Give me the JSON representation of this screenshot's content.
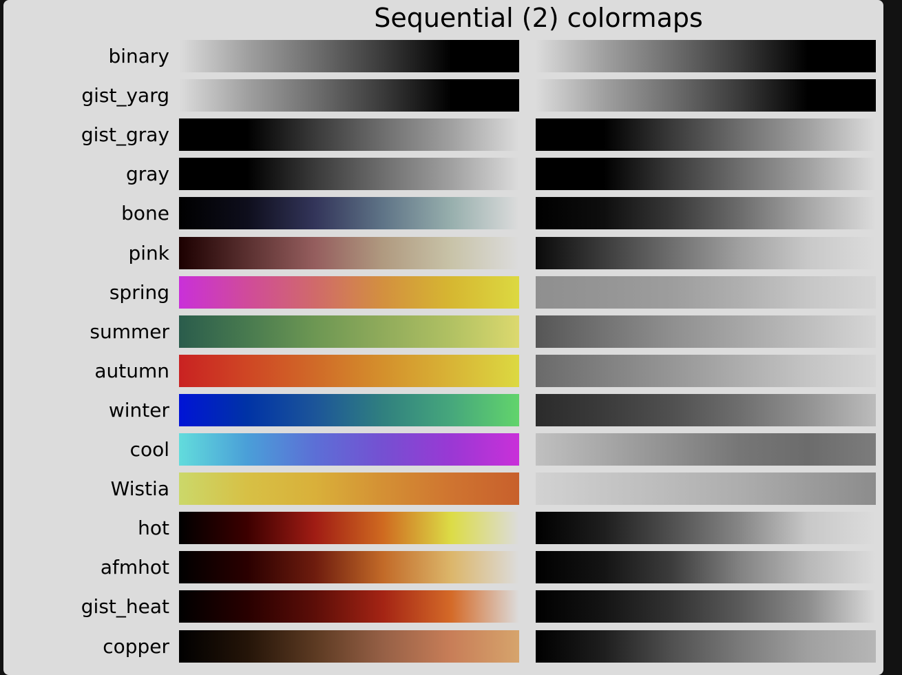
{
  "chart_data": {
    "type": "heatmap",
    "title": "Sequential (2) colormaps",
    "colormaps": [
      {
        "name": "binary",
        "color": [
          "#dcdcdc",
          "#a0a0a0",
          "#6e6e6e",
          "#3a3a3a",
          "#000000",
          "#000000"
        ],
        "gray": [
          "#dcdcdc",
          "#a0a0a0",
          "#6e6e6e",
          "#3a3a3a",
          "#000000",
          "#000000"
        ]
      },
      {
        "name": "gist_yarg",
        "color": [
          "#dcdcdc",
          "#a0a0a0",
          "#6e6e6e",
          "#3a3a3a",
          "#000000",
          "#000000"
        ],
        "gray": [
          "#dcdcdc",
          "#a0a0a0",
          "#6e6e6e",
          "#3a3a3a",
          "#000000",
          "#000000"
        ]
      },
      {
        "name": "gist_gray",
        "color": [
          "#000000",
          "#000000",
          "#3a3a3a",
          "#6e6e6e",
          "#a0a0a0",
          "#dcdcdc"
        ],
        "gray": [
          "#000000",
          "#000000",
          "#3a3a3a",
          "#6e6e6e",
          "#a0a0a0",
          "#dcdcdc"
        ]
      },
      {
        "name": "gray",
        "color": [
          "#000000",
          "#000000",
          "#3a3a3a",
          "#6e6e6e",
          "#a0a0a0",
          "#dcdcdc"
        ],
        "gray": [
          "#000000",
          "#000000",
          "#3a3a3a",
          "#6e6e6e",
          "#a0a0a0",
          "#dcdcdc"
        ]
      },
      {
        "name": "bone",
        "color": [
          "#000000",
          "#0e0e1c",
          "#33355a",
          "#5f7487",
          "#97afad",
          "#dcdcdc"
        ],
        "gray": [
          "#000000",
          "#0e0e0e",
          "#383838",
          "#6c6c6c",
          "#a6a6a6",
          "#dcdcdc"
        ]
      },
      {
        "name": "pink",
        "color": [
          "#1c0000",
          "#5a3030",
          "#955e5e",
          "#b09a80",
          "#c8c3a8",
          "#dcdcdc"
        ],
        "gray": [
          "#0a0a0a",
          "#3c3c3c",
          "#6e6e6e",
          "#a0a0a0",
          "#c8c8c8",
          "#dcdcdc"
        ]
      },
      {
        "name": "spring",
        "color": [
          "#c930d9",
          "#d04b9a",
          "#d06a6a",
          "#d3903f",
          "#d6b731",
          "#dcd941"
        ],
        "gray": [
          "#8f8f8f",
          "#959595",
          "#9d9d9d",
          "#afafaf",
          "#c6c6c6",
          "#d6d6d6"
        ]
      },
      {
        "name": "summer",
        "color": [
          "#2a5c4c",
          "#487a4f",
          "#6d9753",
          "#90ab5b",
          "#b1c163",
          "#dcd96e"
        ],
        "gray": [
          "#565656",
          "#737373",
          "#8f8f8f",
          "#a6a6a6",
          "#bebebe",
          "#d6d6d6"
        ]
      },
      {
        "name": "autumn",
        "color": [
          "#c92222",
          "#cf4624",
          "#d06a28",
          "#d4902c",
          "#d8b436",
          "#dcd941"
        ],
        "gray": [
          "#6a6a6a",
          "#808080",
          "#969696",
          "#adadad",
          "#c4c4c4",
          "#d6d6d6"
        ]
      },
      {
        "name": "winter",
        "color": [
          "#0014d6",
          "#0033a6",
          "#1c5599",
          "#30807f",
          "#46a77c",
          "#62d46c"
        ],
        "gray": [
          "#2b2b2b",
          "#3b3b3b",
          "#505050",
          "#6e6e6e",
          "#929292",
          "#bcbcbc"
        ]
      },
      {
        "name": "cool",
        "color": [
          "#62dcdc",
          "#4a9fd8",
          "#5c6fd6",
          "#7550d2",
          "#9a38d4",
          "#c930d9"
        ],
        "gray": [
          "#c0c0c0",
          "#a8a8a8",
          "#8f8f8f",
          "#767676",
          "#6c6c6c",
          "#7c7c7c"
        ]
      },
      {
        "name": "Wistia",
        "color": [
          "#cbd86a",
          "#d7c045",
          "#d9b03a",
          "#d49034",
          "#cf7430",
          "#c8602c"
        ],
        "gray": [
          "#d2d2d2",
          "#c6c6c6",
          "#bababa",
          "#adadad",
          "#9c9c9c",
          "#8c8c8c"
        ]
      },
      {
        "name": "hot",
        "color": [
          "#000000",
          "#3c0000",
          "#a01c14",
          "#cf6a20",
          "#dcdc46",
          "#dcdcdc"
        ],
        "gray": [
          "#000000",
          "#1e1e1e",
          "#505050",
          "#868686",
          "#c8c8c8",
          "#dcdcdc"
        ]
      },
      {
        "name": "afmhot",
        "color": [
          "#000000",
          "#2a0000",
          "#6e1c0e",
          "#c26a28",
          "#dcb66a",
          "#dcdcdc"
        ],
        "gray": [
          "#000000",
          "#141414",
          "#3c3c3c",
          "#828282",
          "#b8b8b8",
          "#dcdcdc"
        ]
      },
      {
        "name": "gist_heat",
        "color": [
          "#000000",
          "#280000",
          "#5c0e08",
          "#a42414",
          "#d46a28",
          "#dcdcdc"
        ],
        "gray": [
          "#000000",
          "#141414",
          "#323232",
          "#5a5a5a",
          "#8c8c8c",
          "#dcdcdc"
        ]
      },
      {
        "name": "copper",
        "color": [
          "#000000",
          "#241408",
          "#5c3a22",
          "#966046",
          "#c87e58",
          "#d6a46c"
        ],
        "gray": [
          "#000000",
          "#1e1e1e",
          "#505050",
          "#7a7a7a",
          "#a0a0a0",
          "#b6b6b6"
        ]
      }
    ]
  }
}
